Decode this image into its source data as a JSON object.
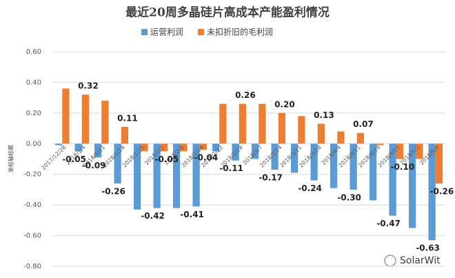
{
  "chart_data": {
    "type": "bar",
    "title": "最近20周多晶硅片高成本产能盈利情况",
    "y_axis_label": "坐标轴标题",
    "watermark": "SolarWit",
    "categories": [
      "2017/12/28",
      "2018/1/4",
      "2018/1/11",
      "2018/1/18",
      "2018/1/25",
      "2018/2/1",
      "2018/2/8",
      "2018/2/14",
      "2018/2/22",
      "2018/2/28",
      "2018/3/7",
      "2018/3/14",
      "2018/3/21",
      "2018/3/28",
      "2018/4/4",
      "2018/4/11",
      "2018/4/18",
      "2018/4/25",
      "2018/5/2",
      "2018/5/9"
    ],
    "series": [
      {
        "name": "运营利润",
        "color": "#5b9bd5",
        "values": [
          -0.01,
          -0.05,
          -0.09,
          -0.26,
          -0.43,
          -0.42,
          -0.42,
          -0.41,
          -0.05,
          -0.11,
          -0.1,
          -0.17,
          -0.19,
          -0.24,
          -0.29,
          -0.3,
          -0.37,
          -0.47,
          -0.55,
          -0.63
        ],
        "value_labels": [
          null,
          "-0.05",
          "-0.09",
          "-0.26",
          null,
          "-0.42",
          null,
          "-0.41",
          null,
          "-0.11",
          null,
          "-0.17",
          null,
          "-0.24",
          null,
          "-0.30",
          null,
          "-0.47",
          null,
          "-0.63"
        ]
      },
      {
        "name": "未扣折旧的毛利润",
        "color": "#ed7d31",
        "values": [
          0.36,
          0.32,
          0.28,
          0.11,
          -0.05,
          -0.05,
          -0.05,
          -0.04,
          0.26,
          0.26,
          0.26,
          0.2,
          0.18,
          0.13,
          0.08,
          0.07,
          -0.01,
          -0.1,
          -0.1,
          -0.26
        ],
        "value_labels": [
          null,
          "0.32",
          null,
          "0.11",
          null,
          "-0.05",
          null,
          "-0.04",
          null,
          "0.26",
          null,
          "0.20",
          null,
          "0.13",
          null,
          "0.07",
          null,
          "-0.10",
          null,
          "-0.26"
        ]
      }
    ],
    "ylim": [
      -0.8,
      0.6
    ],
    "yticks": [
      {
        "value": -0.8,
        "label": "-0.80"
      },
      {
        "value": -0.6,
        "label": "-0.60"
      },
      {
        "value": -0.4,
        "label": "-0.40"
      },
      {
        "value": -0.2,
        "label": "-0.20"
      },
      {
        "value": 0,
        "label": "0.00"
      },
      {
        "value": 0.2,
        "label": "0.20"
      },
      {
        "value": 0.4,
        "label": "0.40"
      },
      {
        "value": 0.6,
        "label": "0.60"
      }
    ],
    "grid": true
  }
}
